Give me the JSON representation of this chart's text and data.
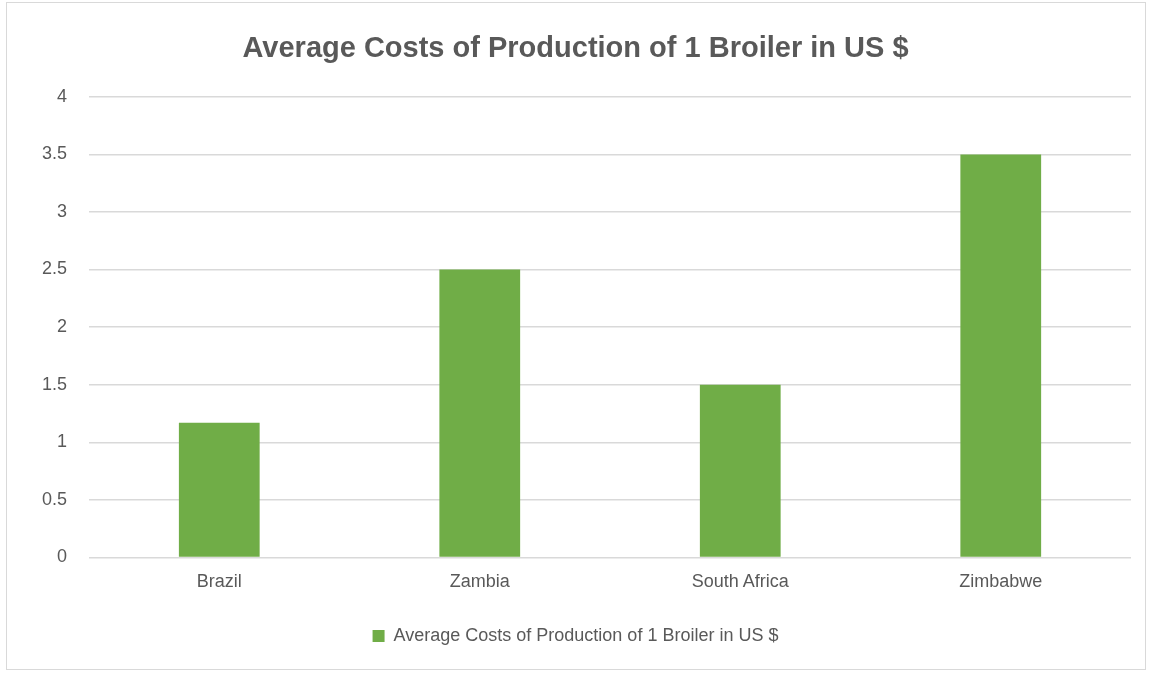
{
  "chart_data": {
    "type": "bar",
    "title": "Average Costs of Production of 1 Broiler in US $",
    "categories": [
      "Brazil",
      "Zambia",
      "South Africa",
      "Zimbabwe"
    ],
    "series": [
      {
        "name": "Average Costs of Production of 1 Broiler in US $",
        "color": "#70ad47",
        "values": [
          1.17,
          2.5,
          1.5,
          3.5
        ]
      }
    ],
    "ylim": [
      0,
      4
    ],
    "yticks": [
      0,
      0.5,
      1,
      1.5,
      2,
      2.5,
      3,
      3.5,
      4
    ],
    "grid": "y",
    "legend": "bottom"
  }
}
